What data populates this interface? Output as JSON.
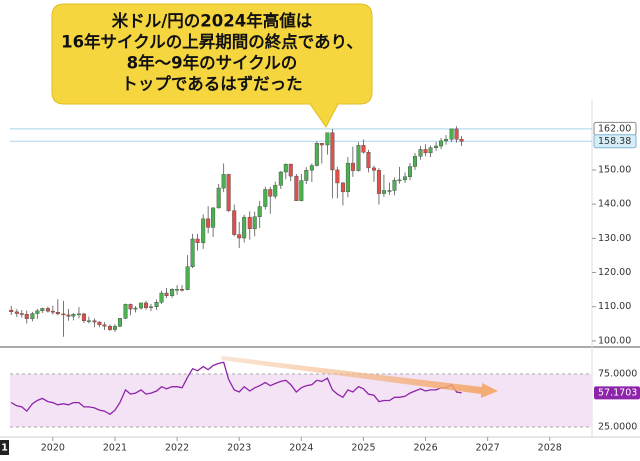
{
  "chart_data": [
    {
      "type": "candlestick",
      "x": [
        2019.33,
        2019.42,
        2019.5,
        2019.58,
        2019.67,
        2019.75,
        2019.83,
        2019.92,
        2020.0,
        2020.08,
        2020.17,
        2020.25,
        2020.33,
        2020.42,
        2020.5,
        2020.58,
        2020.67,
        2020.75,
        2020.83,
        2020.92,
        2021.0,
        2021.08,
        2021.17,
        2021.25,
        2021.33,
        2021.42,
        2021.5,
        2021.58,
        2021.67,
        2021.75,
        2021.83,
        2021.92,
        2022.0,
        2022.08,
        2022.17,
        2022.25,
        2022.33,
        2022.42,
        2022.5,
        2022.58,
        2022.67,
        2022.75,
        2022.83,
        2022.92,
        2023.0,
        2023.08,
        2023.17,
        2023.25,
        2023.33,
        2023.42,
        2023.5,
        2023.58,
        2023.67,
        2023.75,
        2023.83,
        2023.92,
        2024.0,
        2024.08,
        2024.17,
        2024.25,
        2024.33,
        2024.42,
        2024.5,
        2024.58,
        2024.67,
        2024.75,
        2024.83,
        2024.92,
        2025.0,
        2025.08,
        2025.17,
        2025.25,
        2025.33,
        2025.42,
        2025.5,
        2025.58,
        2025.67,
        2025.75,
        2025.83,
        2025.92,
        2026.0,
        2026.08,
        2026.17,
        2026.25,
        2026.33,
        2026.42,
        2026.5,
        2026.58
      ],
      "open": [
        109.0,
        108.5,
        108.0,
        107.8,
        106.5,
        108.0,
        108.8,
        109.5,
        108.7,
        108.4,
        107.9,
        107.6,
        107.2,
        107.8,
        107.9,
        105.9,
        105.9,
        105.5,
        104.7,
        104.3,
        103.3,
        104.3,
        106.6,
        110.7,
        109.3,
        109.6,
        111.1,
        109.7,
        110.0,
        111.3,
        114.0,
        113.2,
        115.1,
        115.1,
        115.0,
        121.7,
        129.8,
        128.7,
        135.7,
        133.2,
        138.9,
        144.7,
        148.7,
        138.1,
        131.1,
        130.1,
        136.2,
        132.8,
        136.3,
        139.3,
        144.3,
        142.3,
        145.5,
        149.4,
        151.7,
        148.2,
        141.0,
        146.9,
        149.9,
        151.3,
        157.8,
        157.3,
        160.9,
        150.0,
        146.2,
        143.6,
        152.0,
        149.8,
        157.2,
        155.2,
        150.6,
        149.9,
        143.1,
        144.0,
        144.0,
        147.0,
        147.1,
        148.0,
        151.0,
        154.0,
        156.0,
        155.0,
        156.5,
        157.0,
        158.5,
        159.0,
        162.0,
        159.0
      ],
      "high": [
        110.2,
        109.3,
        109.0,
        108.9,
        108.5,
        109.3,
        109.7,
        110.0,
        110.3,
        112.2,
        111.7,
        109.4,
        108.2,
        109.9,
        108.2,
        107.1,
        106.6,
        105.8,
        105.5,
        104.8,
        104.9,
        106.7,
        110.9,
        110.9,
        110.2,
        111.1,
        111.7,
        110.8,
        112.1,
        114.7,
        115.5,
        115.4,
        116.3,
        116.3,
        125.1,
        131.3,
        131.3,
        137.0,
        139.4,
        139.1,
        145.9,
        151.9,
        148.9,
        139.9,
        134.8,
        136.9,
        137.9,
        137.8,
        140.9,
        145.1,
        145.1,
        146.6,
        149.7,
        151.9,
        151.9,
        148.8,
        148.8,
        150.8,
        151.9,
        158.4,
        157.9,
        160.9,
        162.0,
        150.9,
        146.5,
        153.8,
        156.8,
        158.1,
        158.9,
        155.9,
        151.3,
        150.5,
        148.6,
        146.3,
        147.8,
        150.9,
        149.3,
        152.0,
        155.0,
        157.0,
        157.5,
        157.2,
        158.2,
        159.4,
        160.2,
        162.0,
        162.8,
        159.9
      ],
      "low": [
        107.6,
        107.0,
        106.8,
        105.1,
        105.7,
        106.5,
        108.2,
        108.3,
        107.7,
        107.5,
        101.2,
        105.9,
        106.0,
        106.6,
        105.2,
        105.1,
        104.0,
        104.0,
        103.2,
        102.9,
        102.6,
        104.0,
        106.4,
        107.5,
        108.3,
        109.2,
        109.1,
        108.7,
        109.1,
        110.8,
        112.5,
        112.6,
        113.5,
        114.4,
        114.8,
        121.3,
        126.4,
        126.9,
        131.5,
        130.4,
        138.7,
        143.5,
        137.7,
        130.6,
        127.2,
        128.8,
        129.6,
        130.6,
        133.0,
        138.4,
        137.2,
        141.5,
        144.4,
        147.3,
        146.7,
        140.9,
        140.8,
        145.9,
        146.5,
        151.0,
        151.9,
        154.5,
        141.7,
        141.7,
        139.6,
        142.0,
        148.0,
        149.5,
        154.8,
        149.3,
        146.5,
        139.9,
        142.1,
        142.7,
        142.6,
        146.0,
        146.2,
        147.0,
        150.0,
        153.0,
        154.0,
        153.8,
        155.6,
        156.1,
        157.4,
        158.2,
        158.0,
        157.0
      ],
      "close": [
        108.5,
        108.0,
        107.8,
        106.5,
        108.0,
        108.8,
        109.5,
        108.7,
        108.4,
        107.9,
        107.6,
        107.2,
        107.8,
        107.9,
        105.9,
        105.9,
        105.5,
        104.7,
        104.3,
        103.3,
        104.3,
        106.6,
        110.7,
        109.3,
        109.6,
        111.1,
        109.7,
        110.0,
        111.3,
        114.0,
        113.2,
        115.1,
        115.1,
        115.0,
        121.7,
        129.8,
        128.7,
        135.7,
        133.2,
        138.9,
        144.7,
        148.7,
        138.1,
        131.1,
        130.1,
        136.2,
        132.8,
        136.3,
        139.3,
        144.3,
        142.3,
        145.5,
        149.4,
        151.7,
        148.2,
        141.0,
        146.9,
        149.9,
        151.3,
        157.8,
        157.3,
        160.9,
        150.0,
        146.2,
        143.6,
        152.0,
        149.8,
        157.2,
        155.2,
        150.6,
        149.9,
        143.1,
        144.0,
        144.0,
        147.0,
        147.1,
        148.0,
        151.0,
        154.0,
        156.0,
        155.0,
        156.5,
        157.0,
        158.5,
        159.0,
        162.0,
        159.0,
        158.38
      ],
      "up_color": "#4caf50",
      "down_color": "#e0504a",
      "xlim": [
        2019.31,
        2028.68
      ],
      "xticks": [
        2020,
        2021,
        2022,
        2023,
        2024,
        2025,
        2026,
        2027,
        2028
      ],
      "ylim": [
        98.8,
        169
      ],
      "yticks": [
        {
          "value": 100,
          "label": "100.00"
        },
        {
          "value": 110,
          "label": "110.00"
        },
        {
          "value": 120,
          "label": "120.00"
        },
        {
          "value": 130,
          "label": "130.00"
        },
        {
          "value": 140,
          "label": "140.00"
        },
        {
          "value": 150,
          "label": "150.00"
        }
      ],
      "hlines": [
        {
          "value": 162,
          "label": "162.00"
        },
        {
          "value": 158.38,
          "label": "158.38"
        }
      ]
    },
    {
      "type": "line",
      "values": [
        48,
        45,
        44,
        40,
        47,
        50,
        52,
        49,
        48,
        46,
        47,
        46,
        48,
        48,
        44,
        44,
        43,
        41,
        40,
        37,
        41,
        48,
        60,
        56,
        57,
        60,
        56,
        57,
        59,
        63,
        61,
        63,
        63,
        62,
        72,
        80,
        78,
        82,
        79,
        83,
        85,
        86,
        70,
        60,
        58,
        63,
        59,
        62,
        64,
        67,
        64,
        66,
        68,
        69,
        65,
        58,
        62,
        64,
        65,
        69,
        68,
        71,
        60,
        56,
        53,
        60,
        58,
        63,
        61,
        56,
        55,
        49,
        50,
        50,
        53,
        53,
        54,
        57,
        59,
        61,
        59,
        60,
        60,
        62,
        62,
        65,
        58,
        57.1703
      ],
      "value_labels": {
        "87": "57.1703"
      },
      "color": "#8e24aa",
      "ylim": [
        17.5,
        97.6
      ],
      "yticks": [
        {
          "value": 75,
          "label": "75.0000"
        },
        {
          "value": 25,
          "label": "25.0000"
        }
      ]
    }
  ],
  "annotation": {
    "lines": [
      "米ドル/円の2024年高値は",
      "16年サイクルの上昇期間の終点であり、",
      "8年～9年のサイクルの",
      "トップであるはずだった"
    ]
  },
  "corner_label": "1"
}
